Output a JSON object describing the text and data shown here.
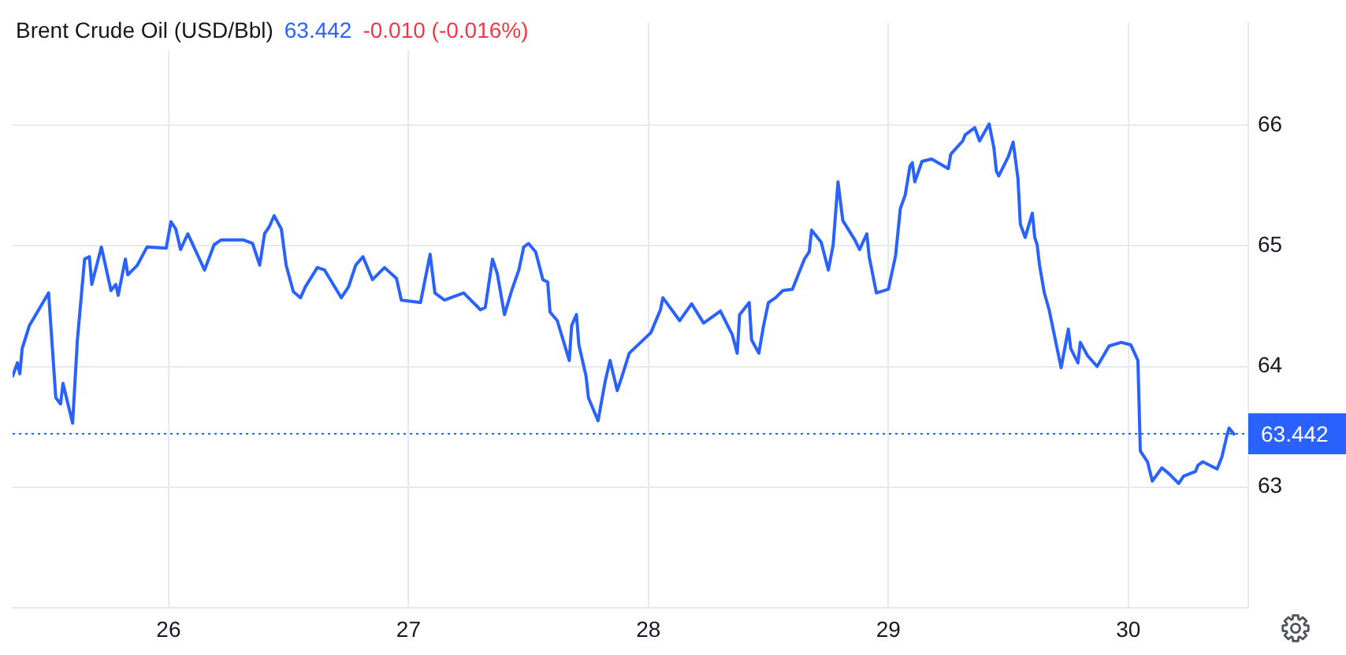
{
  "chart_data": {
    "type": "line",
    "title": "Brent Crude Oil (USD/Bbl)",
    "annotations": [
      "63.442",
      "-0.010 (-0.016%)"
    ],
    "x": [
      25.35,
      25.37,
      25.38,
      25.39,
      25.42,
      25.5,
      25.53,
      25.55,
      25.56,
      25.6,
      25.62,
      25.65,
      25.67,
      25.68,
      25.72,
      25.76,
      25.78,
      25.79,
      25.82,
      25.83,
      25.87,
      25.91,
      25.99,
      26.01,
      26.03,
      26.05,
      26.08,
      26.15,
      26.19,
      26.22,
      26.31,
      26.35,
      26.38,
      26.4,
      26.42,
      26.44,
      26.47,
      26.49,
      26.52,
      26.55,
      26.57,
      26.62,
      26.65,
      26.72,
      26.75,
      26.78,
      26.81,
      26.85,
      26.9,
      26.95,
      26.97,
      27.05,
      27.06,
      27.09,
      27.11,
      27.15,
      27.23,
      27.3,
      27.32,
      27.35,
      27.37,
      27.4,
      27.43,
      27.46,
      27.48,
      27.5,
      27.53,
      27.56,
      27.58,
      27.59,
      27.62,
      27.67,
      27.68,
      27.7,
      27.71,
      27.74,
      27.75,
      27.79,
      27.82,
      27.84,
      27.87,
      27.89,
      27.92,
      28.01,
      28.05,
      28.06,
      28.13,
      28.18,
      28.23,
      28.3,
      28.35,
      28.37,
      28.38,
      28.42,
      28.43,
      28.46,
      28.48,
      28.5,
      28.53,
      28.56,
      28.6,
      28.62,
      28.65,
      28.67,
      28.68,
      28.72,
      28.75,
      28.77,
      28.79,
      28.81,
      28.86,
      28.88,
      28.91,
      28.92,
      28.95,
      29,
      29.03,
      29.05,
      29.07,
      29.09,
      29.1,
      29.11,
      29.14,
      29.18,
      29.25,
      29.26,
      29.31,
      29.32,
      29.36,
      29.38,
      29.42,
      29.44,
      29.45,
      29.46,
      29.5,
      29.52,
      29.54,
      29.55,
      29.57,
      29.6,
      29.61,
      29.62,
      29.63,
      29.65,
      29.67,
      29.7,
      29.72,
      29.75,
      29.76,
      29.79,
      29.8,
      29.83,
      29.87,
      29.92,
      29.97,
      30.01,
      30.04,
      30.05,
      30.08,
      30.1,
      30.14,
      30.17,
      30.21,
      30.23,
      30.28,
      30.29,
      30.31,
      30.37,
      30.39,
      30.41,
      30.42,
      30.44
    ],
    "series": [
      {
        "color": "#2962ff",
        "values": [
          63.92,
          64.03,
          63.94,
          64.15,
          64.34,
          64.61,
          63.74,
          63.69,
          63.86,
          63.53,
          64.22,
          64.89,
          64.91,
          64.68,
          64.99,
          64.63,
          64.68,
          64.59,
          64.89,
          64.76,
          64.84,
          64.99,
          64.98,
          65.2,
          65.14,
          64.97,
          65.1,
          64.8,
          65.01,
          65.05,
          65.05,
          65.02,
          64.84,
          65.1,
          65.16,
          65.25,
          65.14,
          64.84,
          64.62,
          64.57,
          64.66,
          64.82,
          64.8,
          64.57,
          64.66,
          64.84,
          64.91,
          64.72,
          64.82,
          64.73,
          64.55,
          64.53,
          64.63,
          64.93,
          64.61,
          64.55,
          64.61,
          64.47,
          64.49,
          64.89,
          64.77,
          64.43,
          64.63,
          64.8,
          64.99,
          65.02,
          64.95,
          64.72,
          64.7,
          64.45,
          64.38,
          64.05,
          64.34,
          64.43,
          64.18,
          63.92,
          63.74,
          63.55,
          63.88,
          64.05,
          63.8,
          63.92,
          64.11,
          64.28,
          64.47,
          64.57,
          64.38,
          64.52,
          64.36,
          64.46,
          64.26,
          64.11,
          64.43,
          64.53,
          64.22,
          64.11,
          64.34,
          64.53,
          64.57,
          64.63,
          64.64,
          64.74,
          64.89,
          64.95,
          65.13,
          65.03,
          64.8,
          65.01,
          65.53,
          65.21,
          65.05,
          64.97,
          65.1,
          64.91,
          64.61,
          64.64,
          64.92,
          65.31,
          65.42,
          65.66,
          65.69,
          65.53,
          65.7,
          65.72,
          65.64,
          65.76,
          65.87,
          65.92,
          65.98,
          65.87,
          66.01,
          65.81,
          65.62,
          65.58,
          65.74,
          65.86,
          65.56,
          65.18,
          65.07,
          65.27,
          65.07,
          65.01,
          64.84,
          64.61,
          64.47,
          64.18,
          63.99,
          64.31,
          64.15,
          64.03,
          64.2,
          64.09,
          64,
          64.17,
          64.2,
          64.18,
          64.05,
          63.3,
          63.21,
          63.05,
          63.16,
          63.11,
          63.03,
          63.09,
          63.13,
          63.18,
          63.21,
          63.15,
          63.25,
          63.42,
          63.49,
          63.44
        ]
      }
    ],
    "xlim": [
      25.35,
      30.5
    ],
    "xticks": [
      26,
      27,
      28,
      29,
      30
    ],
    "ylim": [
      62,
      66.85
    ],
    "yticks": [
      63,
      64,
      65,
      66
    ],
    "ref_lines": [
      {
        "axis": "y",
        "value": 63.442,
        "label": "63.442",
        "color": "#2962ff",
        "line_style": "dotted"
      }
    ],
    "grid": true,
    "legend": false,
    "marker": "none",
    "line_style": "solid"
  }
}
